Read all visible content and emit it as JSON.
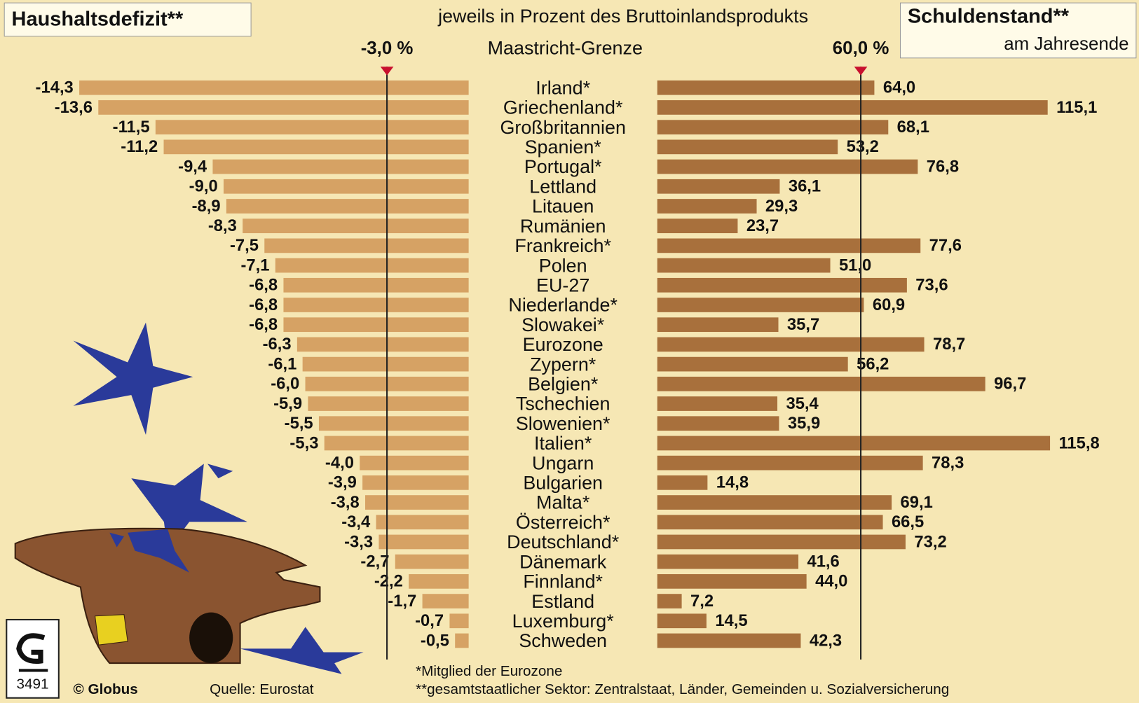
{
  "chart_data": {
    "type": "bar",
    "orientation": "horizontal",
    "title": "jeweils in Prozent des Bruttoinlandsprodukts",
    "subtitle": "am Jahresende",
    "categories": [
      "Irland*",
      "Griechenland*",
      "Großbritannien",
      "Spanien*",
      "Portugal*",
      "Lettland",
      "Litauen",
      "Rumänien",
      "Frankreich*",
      "Polen",
      "EU-27",
      "Niederlande*",
      "Slowakei*",
      "Eurozone",
      "Zypern*",
      "Belgien*",
      "Tschechien",
      "Slowenien*",
      "Italien*",
      "Ungarn",
      "Bulgarien",
      "Malta*",
      "Österreich*",
      "Deutschland*",
      "Dänemark",
      "Finnland*",
      "Estland",
      "Luxemburg*",
      "Schweden"
    ],
    "xlim": [
      -15,
      0
    ],
    "x2lim": [
      0,
      120
    ],
    "series": [
      {
        "name": "Haushaltsdefizit**",
        "color": "#d6a264",
        "axis": "x",
        "values": [
          -14.3,
          -13.6,
          -11.5,
          -11.2,
          -9.4,
          -9.0,
          -8.9,
          -8.3,
          -7.5,
          -7.1,
          -6.8,
          -6.8,
          -6.8,
          -6.3,
          -6.1,
          -6.0,
          -5.9,
          -5.5,
          -5.3,
          -4.0,
          -3.9,
          -3.8,
          -3.4,
          -3.3,
          -2.7,
          -2.2,
          -1.7,
          -0.7,
          -0.5
        ],
        "value_labels": [
          "-14,3",
          "-13,6",
          "-11,5",
          "-11,2",
          "-9,4",
          "-9,0",
          "-8,9",
          "-8,3",
          "-7,5",
          "-7,1",
          "-6,8",
          "-6,8",
          "-6,8",
          "-6,3",
          "-6,1",
          "-6,0",
          "-5,9",
          "-5,5",
          "-5,3",
          "-4,0",
          "-3,9",
          "-3,8",
          "-3,4",
          "-3,3",
          "-2,7",
          "-2,2",
          "-1,7",
          "-0,7",
          "-0,5"
        ]
      },
      {
        "name": "Schuldenstand**",
        "color": "#a8703c",
        "axis": "x2",
        "values": [
          64.0,
          115.1,
          68.1,
          53.2,
          76.8,
          36.1,
          29.3,
          23.7,
          77.6,
          51.0,
          73.6,
          60.9,
          35.7,
          78.7,
          56.2,
          96.7,
          35.4,
          35.9,
          115.8,
          78.3,
          14.8,
          69.1,
          66.5,
          73.2,
          41.6,
          44.0,
          7.2,
          14.5,
          42.3
        ],
        "value_labels": [
          "64,0",
          "115,1",
          "68,1",
          "53,2",
          "76,8",
          "36,1",
          "29,3",
          "23,7",
          "77,6",
          "51,0",
          "73,6",
          "60,9",
          "35,7",
          "78,7",
          "56,2",
          "96,7",
          "35,4",
          "35,9",
          "115,8",
          "78,3",
          "14,8",
          "69,1",
          "66,5",
          "73,2",
          "41,6",
          "44,0",
          "7,2",
          "14,5",
          "42,3"
        ]
      }
    ],
    "reference_lines": [
      {
        "value": -3,
        "label": "-3,0 %",
        "axis": "x",
        "color": "#c8102e"
      },
      {
        "value": 60,
        "label": "60,0 %",
        "axis": "x2",
        "color": "#c8102e"
      }
    ],
    "reference_label": "Maastricht-Grenze",
    "notes": [
      "*Mitglied der Eurozone",
      "**gesamtstaatlicher Sektor: Zentralstaat, Länder, Gemeinden u. Sozialversicherung"
    ],
    "credit": "© Globus",
    "source": "Quelle: Eurostat",
    "code": "3491"
  }
}
